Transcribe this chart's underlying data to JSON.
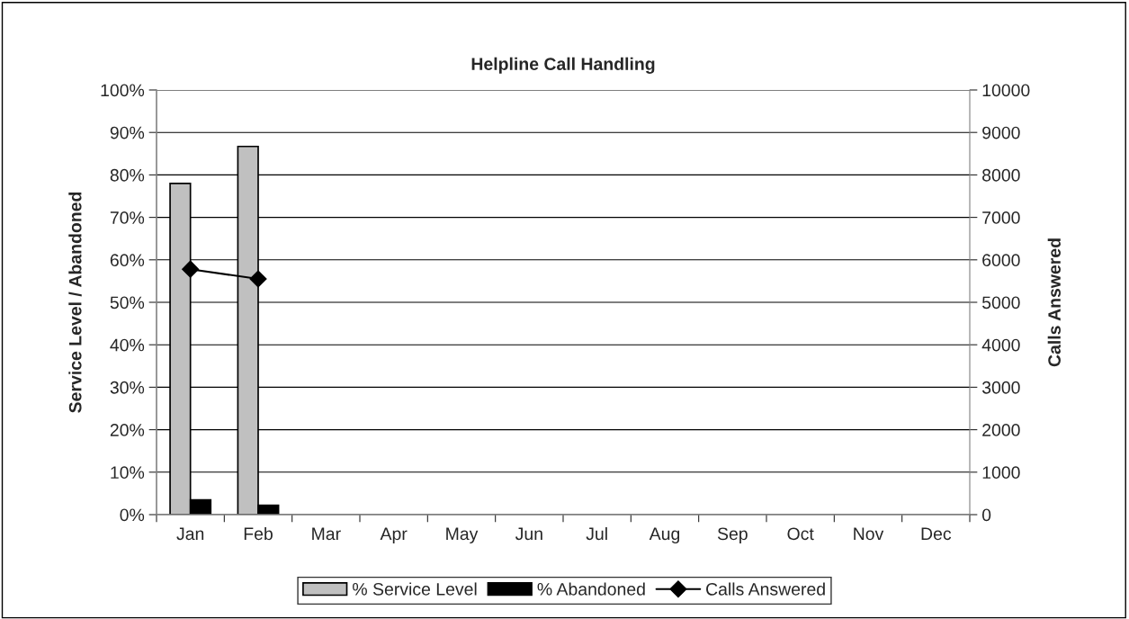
{
  "chart_data": {
    "type": "bar",
    "title": "Helpline Call Handling",
    "ylabel": "Service Level / Abandoned",
    "y2label": "Calls Answered",
    "categories": [
      "Jan",
      "Feb",
      "Mar",
      "Apr",
      "May",
      "Jun",
      "Jul",
      "Aug",
      "Sep",
      "Oct",
      "Nov",
      "Dec"
    ],
    "series": [
      {
        "name": "% Service Level",
        "color": "#c0c0c0",
        "values": [
          78,
          86.7,
          null,
          null,
          null,
          null,
          null,
          null,
          null,
          null,
          null,
          null
        ]
      },
      {
        "name": "% Abandoned",
        "color": "#000000",
        "values": [
          3.5,
          2.2,
          null,
          null,
          null,
          null,
          null,
          null,
          null,
          null,
          null,
          null
        ]
      },
      {
        "name": "Calls Answered",
        "type": "line",
        "axis": "y2",
        "color": "#000000",
        "marker": "diamond",
        "values": [
          5780,
          5550,
          null,
          null,
          null,
          null,
          null,
          null,
          null,
          null,
          null,
          null
        ]
      }
    ],
    "ylim": [
      0,
      100
    ],
    "yticks": [
      {
        "value": 0,
        "label": "0%"
      },
      {
        "value": 10,
        "label": "10%"
      },
      {
        "value": 20,
        "label": "20%"
      },
      {
        "value": 30,
        "label": "30%"
      },
      {
        "value": 40,
        "label": "40%"
      },
      {
        "value": 50,
        "label": "50%"
      },
      {
        "value": 60,
        "label": "60%"
      },
      {
        "value": 70,
        "label": "70%"
      },
      {
        "value": 80,
        "label": "80%"
      },
      {
        "value": 90,
        "label": "90%"
      },
      {
        "value": 100,
        "label": "100%"
      }
    ],
    "y2lim": [
      0,
      10000
    ],
    "y2ticks": [
      0,
      1000,
      2000,
      3000,
      4000,
      5000,
      6000,
      7000,
      8000,
      9000,
      10000
    ],
    "grid": "y",
    "legend": "bottom"
  }
}
